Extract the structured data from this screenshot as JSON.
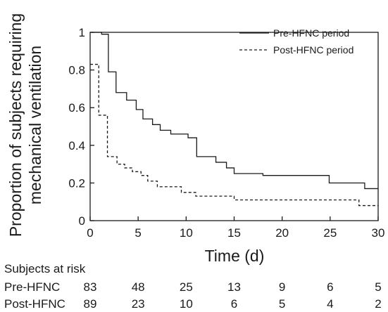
{
  "chart_data": {
    "type": "line",
    "xlabel": "Time (d)",
    "ylabel": "Proportion of subjects requiring mechanical ventilation",
    "ylabel_lines": [
      "Proportion of subjects requiring",
      "mechanical ventilation"
    ],
    "xlim": [
      0,
      30
    ],
    "ylim": [
      0,
      1
    ],
    "xticks": [
      0,
      5,
      10,
      15,
      20,
      25,
      30
    ],
    "yticks": [
      0,
      0.2,
      0.4,
      0.6,
      0.8,
      1
    ],
    "ytick_labels": [
      "0",
      "0.2",
      "0.4",
      "0.6",
      "0.8",
      "1"
    ],
    "step": true,
    "grid": false,
    "legend_position": "top-right",
    "series": [
      {
        "name": "Pre-HFNC period",
        "line_style": "solid",
        "color": "#1a1a1a",
        "points": [
          [
            0,
            1.0
          ],
          [
            1.2,
            0.99
          ],
          [
            1.9,
            0.79
          ],
          [
            2.7,
            0.68
          ],
          [
            3.8,
            0.64
          ],
          [
            4.8,
            0.59
          ],
          [
            5.5,
            0.54
          ],
          [
            6.5,
            0.51
          ],
          [
            7.3,
            0.48
          ],
          [
            8.4,
            0.46
          ],
          [
            10.2,
            0.44
          ],
          [
            11.1,
            0.34
          ],
          [
            13.1,
            0.31
          ],
          [
            14.2,
            0.28
          ],
          [
            15.0,
            0.25
          ],
          [
            18.0,
            0.24
          ],
          [
            20.0,
            0.24
          ],
          [
            24.9,
            0.2
          ],
          [
            28.6,
            0.17
          ],
          [
            30.0,
            0.17
          ]
        ]
      },
      {
        "name": "Post-HFNC period",
        "line_style": "dashed",
        "color": "#1a1a1a",
        "points": [
          [
            0,
            0.83
          ],
          [
            0.9,
            0.56
          ],
          [
            1.8,
            0.34
          ],
          [
            2.8,
            0.3
          ],
          [
            3.6,
            0.28
          ],
          [
            4.4,
            0.26
          ],
          [
            5.3,
            0.24
          ],
          [
            6.0,
            0.21
          ],
          [
            7.0,
            0.18
          ],
          [
            9.5,
            0.15
          ],
          [
            11.0,
            0.13
          ],
          [
            15.0,
            0.11
          ],
          [
            28.0,
            0.08
          ],
          [
            30.0,
            0.08
          ]
        ]
      }
    ],
    "risk_table": {
      "title": "Subjects at risk",
      "times": [
        0,
        5,
        10,
        15,
        20,
        25,
        30
      ],
      "rows": [
        {
          "label": "Pre-HFNC",
          "values": [
            "83",
            "48",
            "25",
            "13",
            "9",
            "6",
            "5"
          ]
        },
        {
          "label": "Post-HFNC",
          "values": [
            "89",
            "23",
            "10",
            "6",
            "5",
            "4",
            "2"
          ]
        }
      ]
    }
  }
}
